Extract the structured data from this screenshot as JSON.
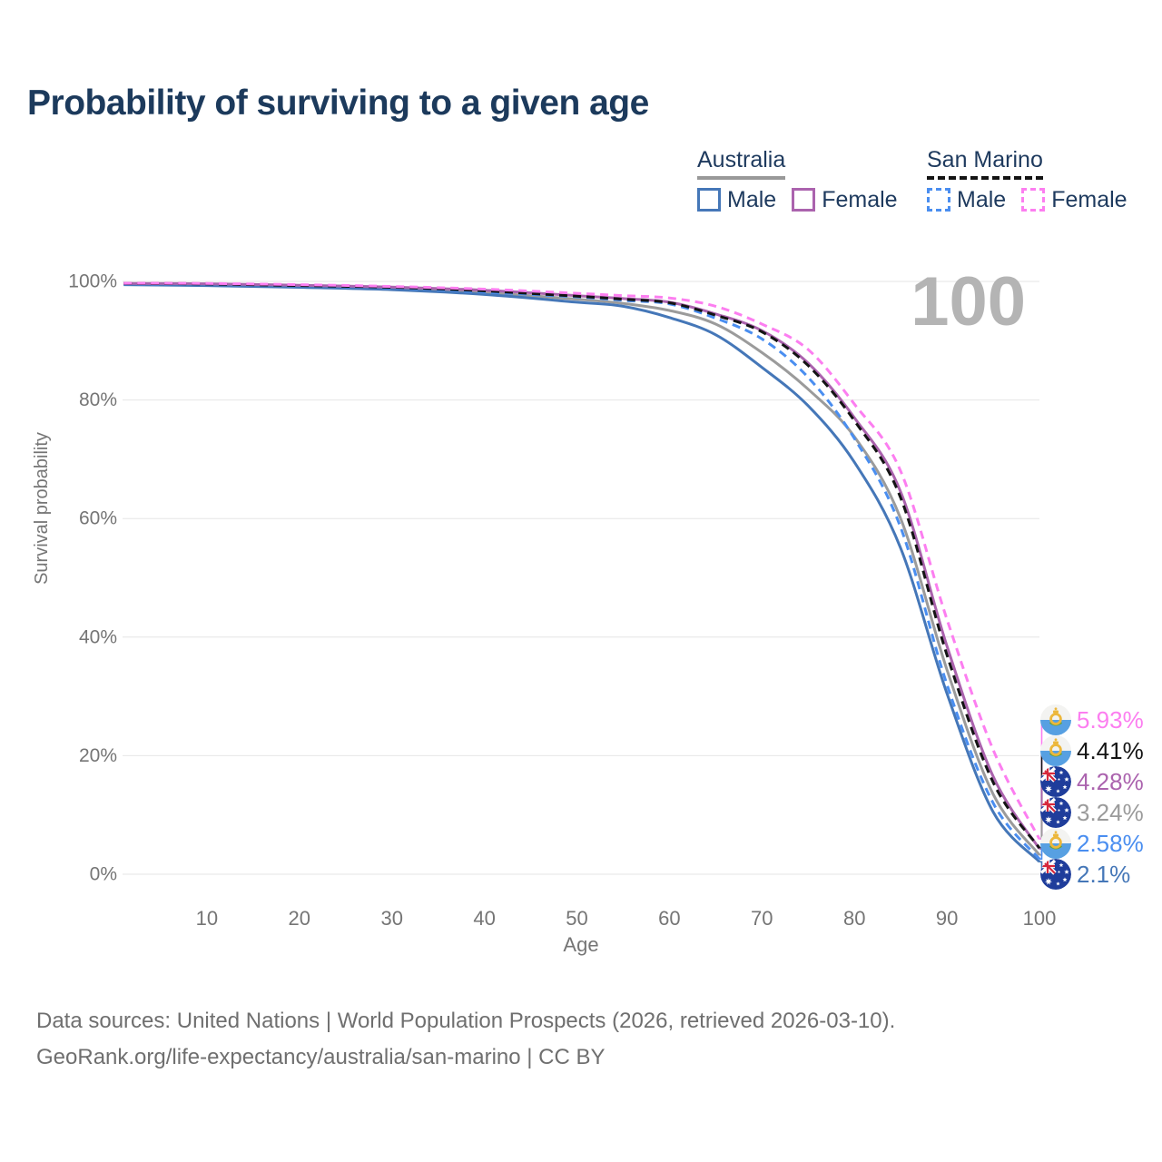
{
  "title": "Probability of surviving to a given age",
  "watermark": "100",
  "legend": {
    "groups": [
      {
        "id": "australia",
        "label": "Australia",
        "line_style": "solid",
        "line_color": "#999999",
        "items": [
          {
            "id": "australia-male",
            "label": "Male",
            "color": "#4577b8",
            "dashed": false
          },
          {
            "id": "australia-female",
            "label": "Female",
            "color": "#ab63ae",
            "dashed": false
          }
        ]
      },
      {
        "id": "san-marino",
        "label": "San Marino",
        "line_style": "dashed",
        "line_color": "#141414",
        "items": [
          {
            "id": "san-marino-male",
            "label": "Male",
            "color": "#4a8ef0",
            "dashed": true
          },
          {
            "id": "san-marino-female",
            "label": "Female",
            "color": "#fc7ef0",
            "dashed": true
          }
        ]
      }
    ]
  },
  "chart_data": {
    "type": "line",
    "title": "Probability of surviving to a given age",
    "xlabel": "Age",
    "ylabel": "Survival probability",
    "xlim": [
      1,
      100
    ],
    "ylim": [
      0,
      100
    ],
    "grid": "horizontal",
    "x_ticks": [
      "10",
      "20",
      "30",
      "40",
      "50",
      "60",
      "70",
      "80",
      "90",
      "100"
    ],
    "x_tick_values": [
      10,
      20,
      30,
      40,
      50,
      60,
      70,
      80,
      90,
      100
    ],
    "y_ticks": [
      {
        "value": 0,
        "label": "0%"
      },
      {
        "value": 20,
        "label": "20%"
      },
      {
        "value": 40,
        "label": "40%"
      },
      {
        "value": 60,
        "label": "60%"
      },
      {
        "value": 80,
        "label": "80%"
      },
      {
        "value": 100,
        "label": "100%"
      }
    ],
    "x": [
      1,
      10,
      20,
      30,
      40,
      50,
      55,
      60,
      65,
      70,
      75,
      80,
      85,
      90,
      95,
      100
    ],
    "series": [
      {
        "id": "san-marino-female",
        "name": "San Marino Female",
        "country": "san-marino",
        "color": "#fc7ef0",
        "dashed": true,
        "end_label": "5.93%",
        "values": [
          99.7,
          99.65,
          99.45,
          99.15,
          98.7,
          98.0,
          97.6,
          97.2,
          95.8,
          92.8,
          88.5,
          79.3,
          68.0,
          43.0,
          21.0,
          5.93
        ]
      },
      {
        "id": "san-marino-total",
        "name": "San Marino",
        "country": "san-marino",
        "color": "#141414",
        "dashed": true,
        "end_label": "4.41%",
        "values": [
          99.65,
          99.55,
          99.3,
          99.0,
          98.4,
          97.5,
          97.0,
          96.4,
          94.3,
          91.5,
          85.8,
          76.5,
          63.5,
          37.0,
          15.5,
          4.41
        ]
      },
      {
        "id": "australia-female",
        "name": "Australia Female",
        "country": "australia",
        "color": "#ab63ae",
        "dashed": false,
        "end_label": "4.28%",
        "values": [
          99.65,
          99.6,
          99.35,
          99.05,
          98.5,
          97.6,
          97.1,
          96.5,
          94.5,
          91.7,
          86.2,
          77.0,
          64.5,
          38.5,
          16.5,
          4.28
        ]
      },
      {
        "id": "australia-total",
        "name": "Australia",
        "country": "australia",
        "color": "#9b9b9b",
        "dashed": false,
        "end_label": "3.24%",
        "values": [
          99.55,
          99.45,
          99.15,
          98.8,
          98.1,
          97.0,
          96.3,
          95.1,
          92.8,
          88.0,
          81.8,
          73.8,
          60.0,
          34.5,
          13.5,
          3.24
        ]
      },
      {
        "id": "san-marino-male",
        "name": "San Marino Male",
        "country": "san-marino",
        "color": "#4a8ef0",
        "dashed": true,
        "end_label": "2.58%",
        "values": [
          99.6,
          99.5,
          99.25,
          98.9,
          98.2,
          97.4,
          96.8,
          96.2,
          93.8,
          90.3,
          83.8,
          73.5,
          58.5,
          32.0,
          12.0,
          2.58
        ]
      },
      {
        "id": "australia-male",
        "name": "Australia Male",
        "country": "australia",
        "color": "#4577b8",
        "dashed": false,
        "end_label": "2.1%",
        "values": [
          99.45,
          99.3,
          99.0,
          98.6,
          97.8,
          96.5,
          95.8,
          93.9,
          91.0,
          85.5,
          79.0,
          69.5,
          55.0,
          30.5,
          10.5,
          2.1
        ]
      }
    ]
  },
  "footer": {
    "line1": "Data sources: United Nations | World Population Prospects (2026, retrieved 2026-03-10).",
    "line2": "GeoRank.org/life-expectancy/australia/san-marino | CC BY"
  }
}
